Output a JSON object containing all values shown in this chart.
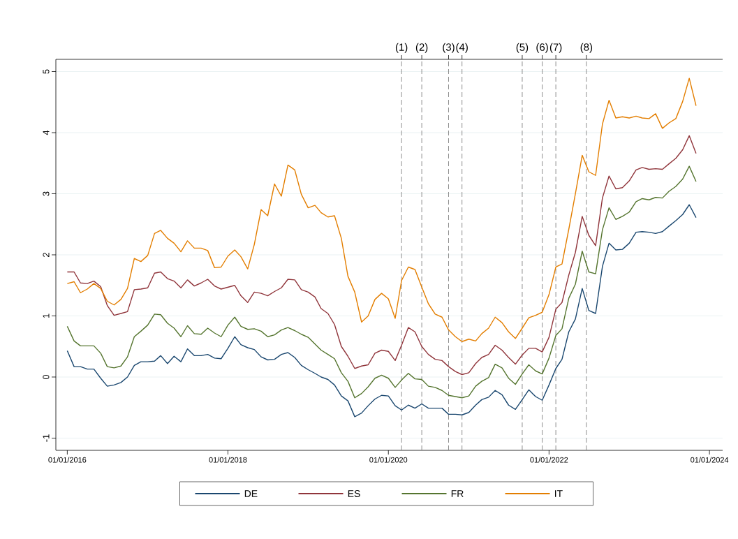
{
  "chart_data": {
    "type": "line",
    "x": [
      "2016-01",
      "2016-02",
      "2016-03",
      "2016-04",
      "2016-05",
      "2016-06",
      "2016-07",
      "2016-08",
      "2016-09",
      "2016-10",
      "2016-11",
      "2016-12",
      "2017-01",
      "2017-02",
      "2017-03",
      "2017-04",
      "2017-05",
      "2017-06",
      "2017-07",
      "2017-08",
      "2017-09",
      "2017-10",
      "2017-11",
      "2017-12",
      "2018-01",
      "2018-02",
      "2018-03",
      "2018-04",
      "2018-05",
      "2018-06",
      "2018-07",
      "2018-08",
      "2018-09",
      "2018-10",
      "2018-11",
      "2018-12",
      "2019-01",
      "2019-02",
      "2019-03",
      "2019-04",
      "2019-05",
      "2019-06",
      "2019-07",
      "2019-08",
      "2019-09",
      "2019-10",
      "2019-11",
      "2019-12",
      "2020-01",
      "2020-02",
      "2020-03",
      "2020-04",
      "2020-05",
      "2020-06",
      "2020-07",
      "2020-08",
      "2020-09",
      "2020-10",
      "2020-11",
      "2020-12",
      "2021-01",
      "2021-02",
      "2021-03",
      "2021-04",
      "2021-05",
      "2021-06",
      "2021-07",
      "2021-08",
      "2021-09",
      "2021-10",
      "2021-11",
      "2021-12",
      "2022-01",
      "2022-02",
      "2022-03",
      "2022-04",
      "2022-05",
      "2022-06",
      "2022-07",
      "2022-08",
      "2022-09",
      "2022-10",
      "2022-11",
      "2022-12",
      "2023-01",
      "2023-02",
      "2023-03",
      "2023-04",
      "2023-05",
      "2023-06",
      "2023-07",
      "2023-08",
      "2023-09",
      "2023-10",
      "2023-11"
    ],
    "series": [
      {
        "name": "DE",
        "color": "#1a476f",
        "values": [
          0.43,
          0.17,
          0.17,
          0.13,
          0.13,
          -0.02,
          -0.15,
          -0.13,
          -0.09,
          0.0,
          0.19,
          0.25,
          0.25,
          0.26,
          0.35,
          0.22,
          0.34,
          0.25,
          0.46,
          0.35,
          0.35,
          0.37,
          0.31,
          0.3,
          0.47,
          0.66,
          0.53,
          0.48,
          0.45,
          0.33,
          0.28,
          0.29,
          0.37,
          0.4,
          0.32,
          0.19,
          0.12,
          0.06,
          0.0,
          -0.04,
          -0.13,
          -0.31,
          -0.39,
          -0.65,
          -0.59,
          -0.47,
          -0.36,
          -0.3,
          -0.31,
          -0.47,
          -0.54,
          -0.46,
          -0.51,
          -0.44,
          -0.51,
          -0.51,
          -0.51,
          -0.61,
          -0.61,
          -0.62,
          -0.58,
          -0.46,
          -0.37,
          -0.33,
          -0.22,
          -0.29,
          -0.46,
          -0.53,
          -0.37,
          -0.21,
          -0.32,
          -0.38,
          -0.13,
          0.14,
          0.29,
          0.74,
          0.95,
          1.45,
          1.09,
          1.04,
          1.81,
          2.19,
          2.08,
          2.09,
          2.19,
          2.37,
          2.38,
          2.37,
          2.35,
          2.38,
          2.47,
          2.56,
          2.66,
          2.82,
          2.61
        ]
      },
      {
        "name": "ES",
        "color": "#90353b",
        "values": [
          1.72,
          1.72,
          1.54,
          1.53,
          1.57,
          1.48,
          1.17,
          1.01,
          1.04,
          1.07,
          1.43,
          1.44,
          1.46,
          1.7,
          1.72,
          1.61,
          1.57,
          1.46,
          1.59,
          1.49,
          1.54,
          1.6,
          1.49,
          1.44,
          1.47,
          1.5,
          1.33,
          1.22,
          1.39,
          1.37,
          1.33,
          1.4,
          1.46,
          1.6,
          1.59,
          1.43,
          1.39,
          1.31,
          1.12,
          1.04,
          0.86,
          0.5,
          0.34,
          0.14,
          0.18,
          0.2,
          0.39,
          0.44,
          0.42,
          0.27,
          0.52,
          0.81,
          0.74,
          0.5,
          0.37,
          0.29,
          0.27,
          0.17,
          0.09,
          0.04,
          0.07,
          0.22,
          0.32,
          0.37,
          0.52,
          0.44,
          0.32,
          0.21,
          0.36,
          0.47,
          0.47,
          0.41,
          0.65,
          1.11,
          1.22,
          1.67,
          2.04,
          2.63,
          2.32,
          2.15,
          2.93,
          3.29,
          3.08,
          3.1,
          3.21,
          3.39,
          3.43,
          3.4,
          3.41,
          3.4,
          3.49,
          3.58,
          3.72,
          3.95,
          3.66
        ]
      },
      {
        "name": "FR",
        "color": "#55752f",
        "values": [
          0.83,
          0.59,
          0.51,
          0.51,
          0.51,
          0.39,
          0.17,
          0.15,
          0.18,
          0.33,
          0.66,
          0.75,
          0.85,
          1.03,
          1.02,
          0.88,
          0.8,
          0.66,
          0.84,
          0.71,
          0.7,
          0.8,
          0.72,
          0.66,
          0.85,
          0.98,
          0.83,
          0.78,
          0.79,
          0.75,
          0.66,
          0.69,
          0.77,
          0.81,
          0.76,
          0.7,
          0.65,
          0.54,
          0.44,
          0.37,
          0.3,
          0.07,
          -0.07,
          -0.34,
          -0.27,
          -0.16,
          -0.02,
          0.03,
          -0.02,
          -0.17,
          -0.05,
          0.06,
          -0.03,
          -0.04,
          -0.15,
          -0.17,
          -0.22,
          -0.3,
          -0.32,
          -0.34,
          -0.31,
          -0.15,
          -0.07,
          -0.01,
          0.21,
          0.15,
          -0.02,
          -0.12,
          0.05,
          0.2,
          0.1,
          0.05,
          0.31,
          0.68,
          0.79,
          1.29,
          1.52,
          2.06,
          1.72,
          1.69,
          2.41,
          2.77,
          2.58,
          2.63,
          2.7,
          2.87,
          2.92,
          2.9,
          2.94,
          2.93,
          3.04,
          3.12,
          3.24,
          3.45,
          3.2
        ]
      },
      {
        "name": "IT",
        "color": "#e37e00",
        "values": [
          1.53,
          1.56,
          1.38,
          1.44,
          1.53,
          1.45,
          1.24,
          1.18,
          1.27,
          1.45,
          1.94,
          1.89,
          1.99,
          2.35,
          2.4,
          2.27,
          2.19,
          2.05,
          2.23,
          2.11,
          2.11,
          2.07,
          1.79,
          1.8,
          1.98,
          2.08,
          1.97,
          1.77,
          2.17,
          2.74,
          2.64,
          3.16,
          2.96,
          3.47,
          3.39,
          2.99,
          2.77,
          2.81,
          2.69,
          2.62,
          2.64,
          2.27,
          1.65,
          1.39,
          0.9,
          1.0,
          1.27,
          1.37,
          1.28,
          0.96,
          1.58,
          1.8,
          1.76,
          1.47,
          1.2,
          1.03,
          0.98,
          0.77,
          0.66,
          0.58,
          0.62,
          0.59,
          0.71,
          0.8,
          0.98,
          0.89,
          0.74,
          0.63,
          0.8,
          0.97,
          1.01,
          1.06,
          1.35,
          1.8,
          1.85,
          2.42,
          3.0,
          3.63,
          3.36,
          3.3,
          4.14,
          4.53,
          4.24,
          4.26,
          4.24,
          4.27,
          4.24,
          4.23,
          4.31,
          4.07,
          4.16,
          4.23,
          4.51,
          4.89,
          4.44
        ]
      }
    ],
    "xlim": [
      "2015-11-10",
      "2024-03-01"
    ],
    "xticks": [
      {
        "value": "2016-01-01",
        "label": "01/01/2016"
      },
      {
        "value": "2018-01-01",
        "label": "01/01/2018"
      },
      {
        "value": "2020-01-01",
        "label": "01/01/2020"
      },
      {
        "value": "2022-01-01",
        "label": "01/01/2022"
      },
      {
        "value": "2024-01-01",
        "label": "01/01/2024"
      }
    ],
    "ylim": [
      -1.2,
      5.2
    ],
    "yticks": [
      -1,
      0,
      1,
      2,
      3,
      4,
      5
    ],
    "grid": "y",
    "legend": "bottom",
    "line_style": "solid",
    "marker": "none",
    "ref_lines": [
      {
        "axis": "x",
        "value": "2020-03-01",
        "label": "(1)",
        "color": "#808080",
        "line_style": "dashed"
      },
      {
        "axis": "x",
        "value": "2020-06-01",
        "label": "(2)",
        "color": "#808080",
        "line_style": "dashed"
      },
      {
        "axis": "x",
        "value": "2020-10-01",
        "label": "(3)",
        "color": "#808080",
        "line_style": "dashed"
      },
      {
        "axis": "x",
        "value": "2020-12-01",
        "label": "(4)",
        "color": "#808080",
        "line_style": "dashed"
      },
      {
        "axis": "x",
        "value": "2021-09-01",
        "label": "(5)",
        "color": "#808080",
        "line_style": "dashed"
      },
      {
        "axis": "x",
        "value": "2021-12-01",
        "label": "(6)",
        "color": "#808080",
        "line_style": "dashed"
      },
      {
        "axis": "x",
        "value": "2022-02-01",
        "label": "(7)",
        "color": "#808080",
        "line_style": "dashed"
      },
      {
        "axis": "x",
        "value": "2022-06-20",
        "label": "(8)",
        "color": "#808080",
        "line_style": "dashed"
      }
    ]
  }
}
